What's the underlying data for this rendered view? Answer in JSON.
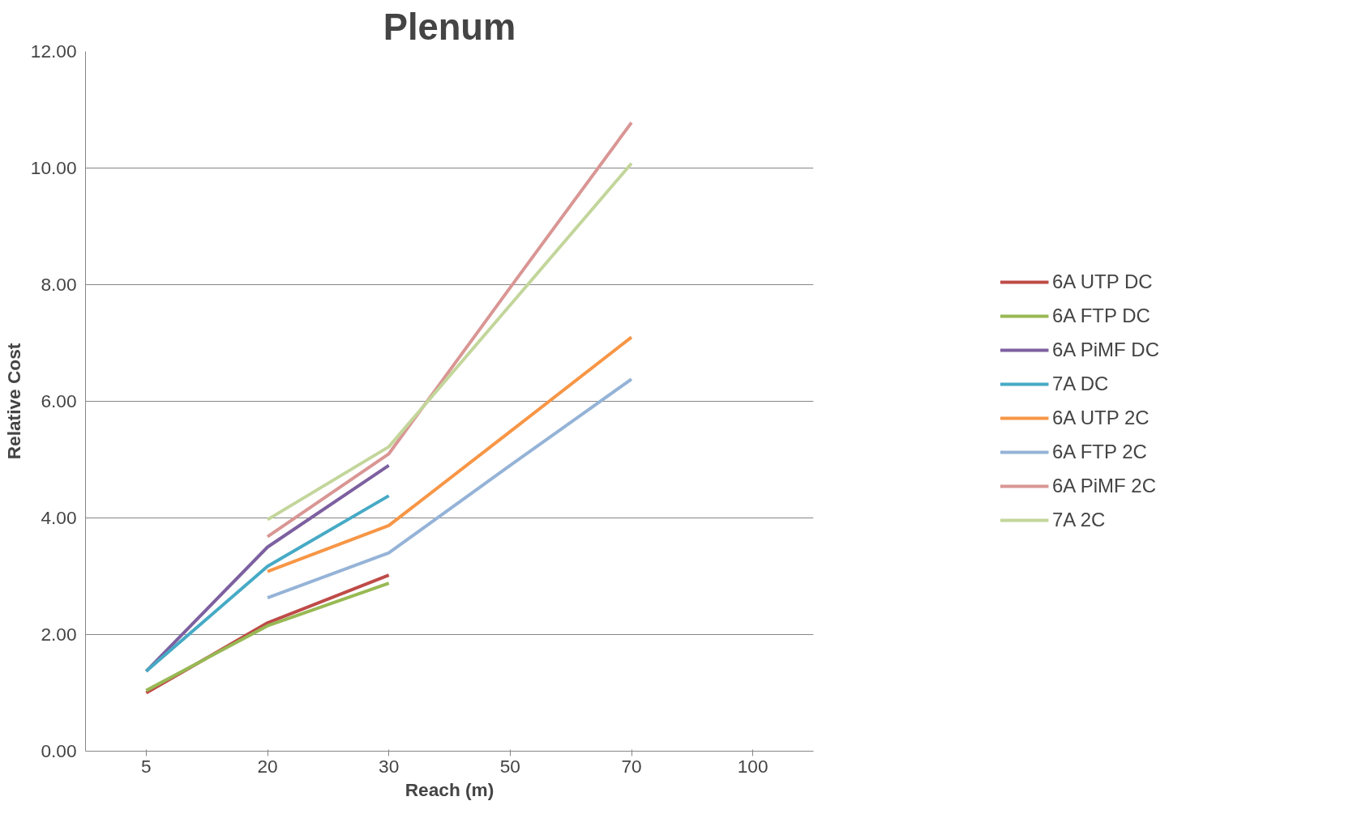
{
  "chart_data": {
    "type": "line",
    "title": "Plenum",
    "xlabel": "Reach (m)",
    "ylabel": "Relative Cost",
    "categories": [
      "5",
      "20",
      "30",
      "50",
      "70",
      "100"
    ],
    "ylim": [
      0,
      12
    ],
    "yticks": [
      {
        "value": 0,
        "label": "0.00"
      },
      {
        "value": 2,
        "label": "2.00"
      },
      {
        "value": 4,
        "label": "4.00"
      },
      {
        "value": 6,
        "label": "6.00"
      },
      {
        "value": 8,
        "label": "8.00"
      },
      {
        "value": 10,
        "label": "10.00"
      },
      {
        "value": 12,
        "label": "12.00"
      }
    ],
    "grid": "y",
    "legend": "right",
    "marker": "none",
    "line_style": "solid",
    "series": [
      {
        "name": "6A UTP DC",
        "color": "#be4b48",
        "values": [
          1.0,
          2.2,
          3.02,
          null,
          null,
          null
        ]
      },
      {
        "name": "6A FTP DC",
        "color": "#98b954",
        "values": [
          1.04,
          2.15,
          2.88,
          null,
          null,
          null
        ]
      },
      {
        "name": "6A PiMF DC",
        "color": "#7d60a0",
        "values": [
          1.37,
          3.5,
          4.9,
          null,
          null,
          null
        ]
      },
      {
        "name": "7A DC",
        "color": "#46aac5",
        "values": [
          1.37,
          3.17,
          4.38,
          null,
          null,
          null
        ]
      },
      {
        "name": "6A UTP 2C",
        "color": "#f79646",
        "values": [
          null,
          3.08,
          3.87,
          5.48,
          7.1,
          null
        ]
      },
      {
        "name": "6A FTP 2C",
        "color": "#95b3d7",
        "values": [
          null,
          2.63,
          3.4,
          4.9,
          6.38,
          null
        ]
      },
      {
        "name": "6A PiMF 2C",
        "color": "#d99694",
        "values": [
          null,
          3.68,
          5.1,
          7.95,
          10.78,
          null
        ]
      },
      {
        "name": "7A 2C",
        "color": "#c3d69b",
        "values": [
          null,
          3.97,
          5.22,
          7.65,
          10.08,
          null
        ]
      }
    ]
  }
}
